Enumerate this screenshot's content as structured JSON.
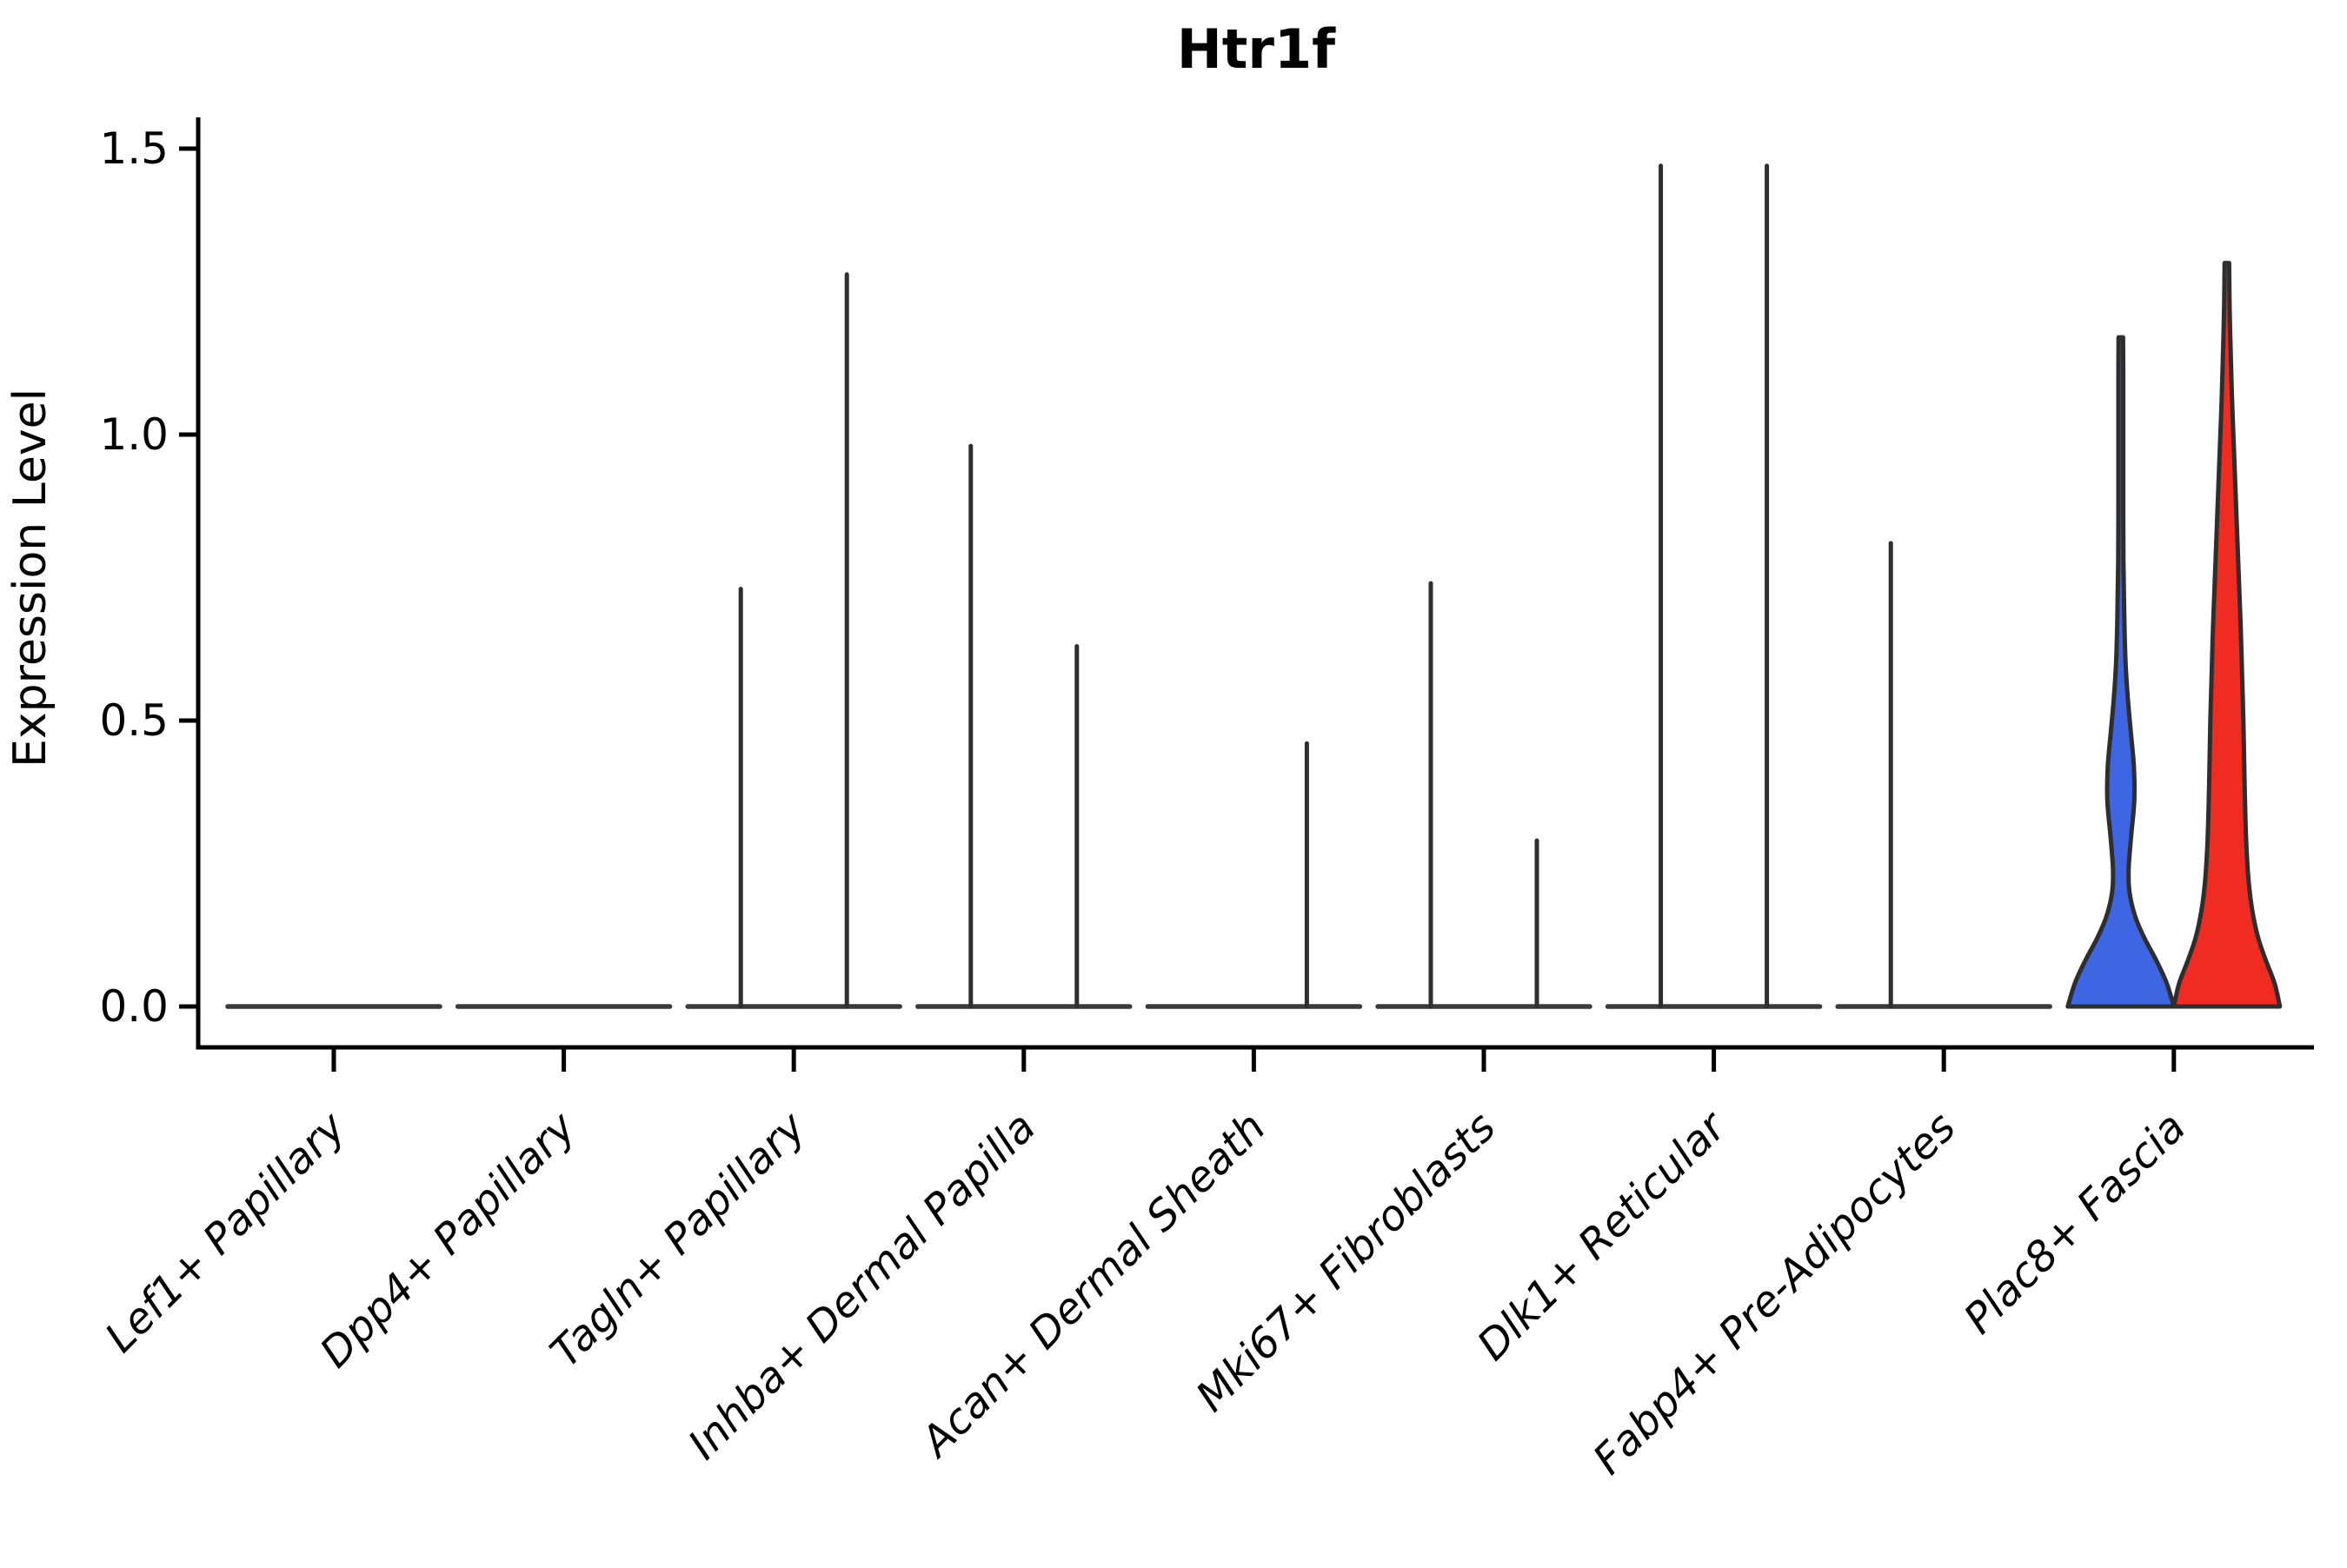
{
  "figure": {
    "background": "#ffffff"
  },
  "chart_data": {
    "type": "violin",
    "title": "Htr1f",
    "ylabel": "Expression Level",
    "xlabel": "",
    "ylim": [
      0,
      1.5
    ],
    "yticks": [
      0.0,
      0.5,
      1.0,
      1.5
    ],
    "ytick_labels": [
      "0.0",
      "0.5",
      "1.0",
      "1.5"
    ],
    "grid": false,
    "legend": "none",
    "categories": [
      "Lef1+ Papillary",
      "Dpp4+ Papillary",
      "Tagln+ Papillary",
      "Inhba+ Dermal Papilla",
      "Acan+ Dermal Sheath",
      "Mki67+ Fibroblasts",
      "Dlk1+ Reticular",
      "Fabp4+ Pre-Adipocytes",
      "Plac8+ Fascia"
    ],
    "series": [
      {
        "name": "left-violin-group",
        "color": "#3E66E2",
        "max_expression": [
          0,
          0,
          0.73,
          0.98,
          0,
          0.74,
          1.47,
          0.81,
          1.17
        ]
      },
      {
        "name": "right-violin-group",
        "color": "#F02C22",
        "max_expression": [
          0,
          0,
          1.28,
          0.63,
          0.46,
          0.29,
          1.47,
          0,
          1.3
        ]
      }
    ],
    "filled_violins": {
      "category": "Plac8+ Fascia",
      "blue_max": 1.17,
      "red_max": 1.3,
      "blue_profile": [
        [
          0,
          61
        ],
        [
          0.04,
          53
        ],
        [
          0.08,
          41
        ],
        [
          0.12,
          27
        ],
        [
          0.16,
          16
        ],
        [
          0.2,
          10
        ],
        [
          0.24,
          9
        ],
        [
          0.3,
          12
        ],
        [
          0.36,
          15.5
        ],
        [
          0.42,
          15
        ],
        [
          0.48,
          11.5
        ],
        [
          0.54,
          8
        ],
        [
          0.6,
          5.5
        ],
        [
          0.68,
          4
        ],
        [
          0.78,
          3
        ],
        [
          0.9,
          2.8
        ],
        [
          1.02,
          2.8
        ],
        [
          1.1,
          2.8
        ],
        [
          1.17,
          2.6
        ]
      ],
      "red_profile": [
        [
          0,
          61
        ],
        [
          0.04,
          55
        ],
        [
          0.08,
          45
        ],
        [
          0.12,
          36
        ],
        [
          0.17,
          29
        ],
        [
          0.22,
          25
        ],
        [
          0.28,
          22.5
        ],
        [
          0.35,
          21
        ],
        [
          0.42,
          20
        ],
        [
          0.5,
          19
        ],
        [
          0.58,
          17.5
        ],
        [
          0.66,
          16
        ],
        [
          0.74,
          14
        ],
        [
          0.82,
          12
        ],
        [
          0.9,
          10
        ],
        [
          0.98,
          8
        ],
        [
          1.06,
          6
        ],
        [
          1.14,
          4.5
        ],
        [
          1.22,
          3.2
        ],
        [
          1.3,
          2.6
        ]
      ]
    },
    "colors": {
      "outline": "#2E2E2E",
      "axis": "#000000",
      "zero_line": "#3A3A3A"
    }
  }
}
